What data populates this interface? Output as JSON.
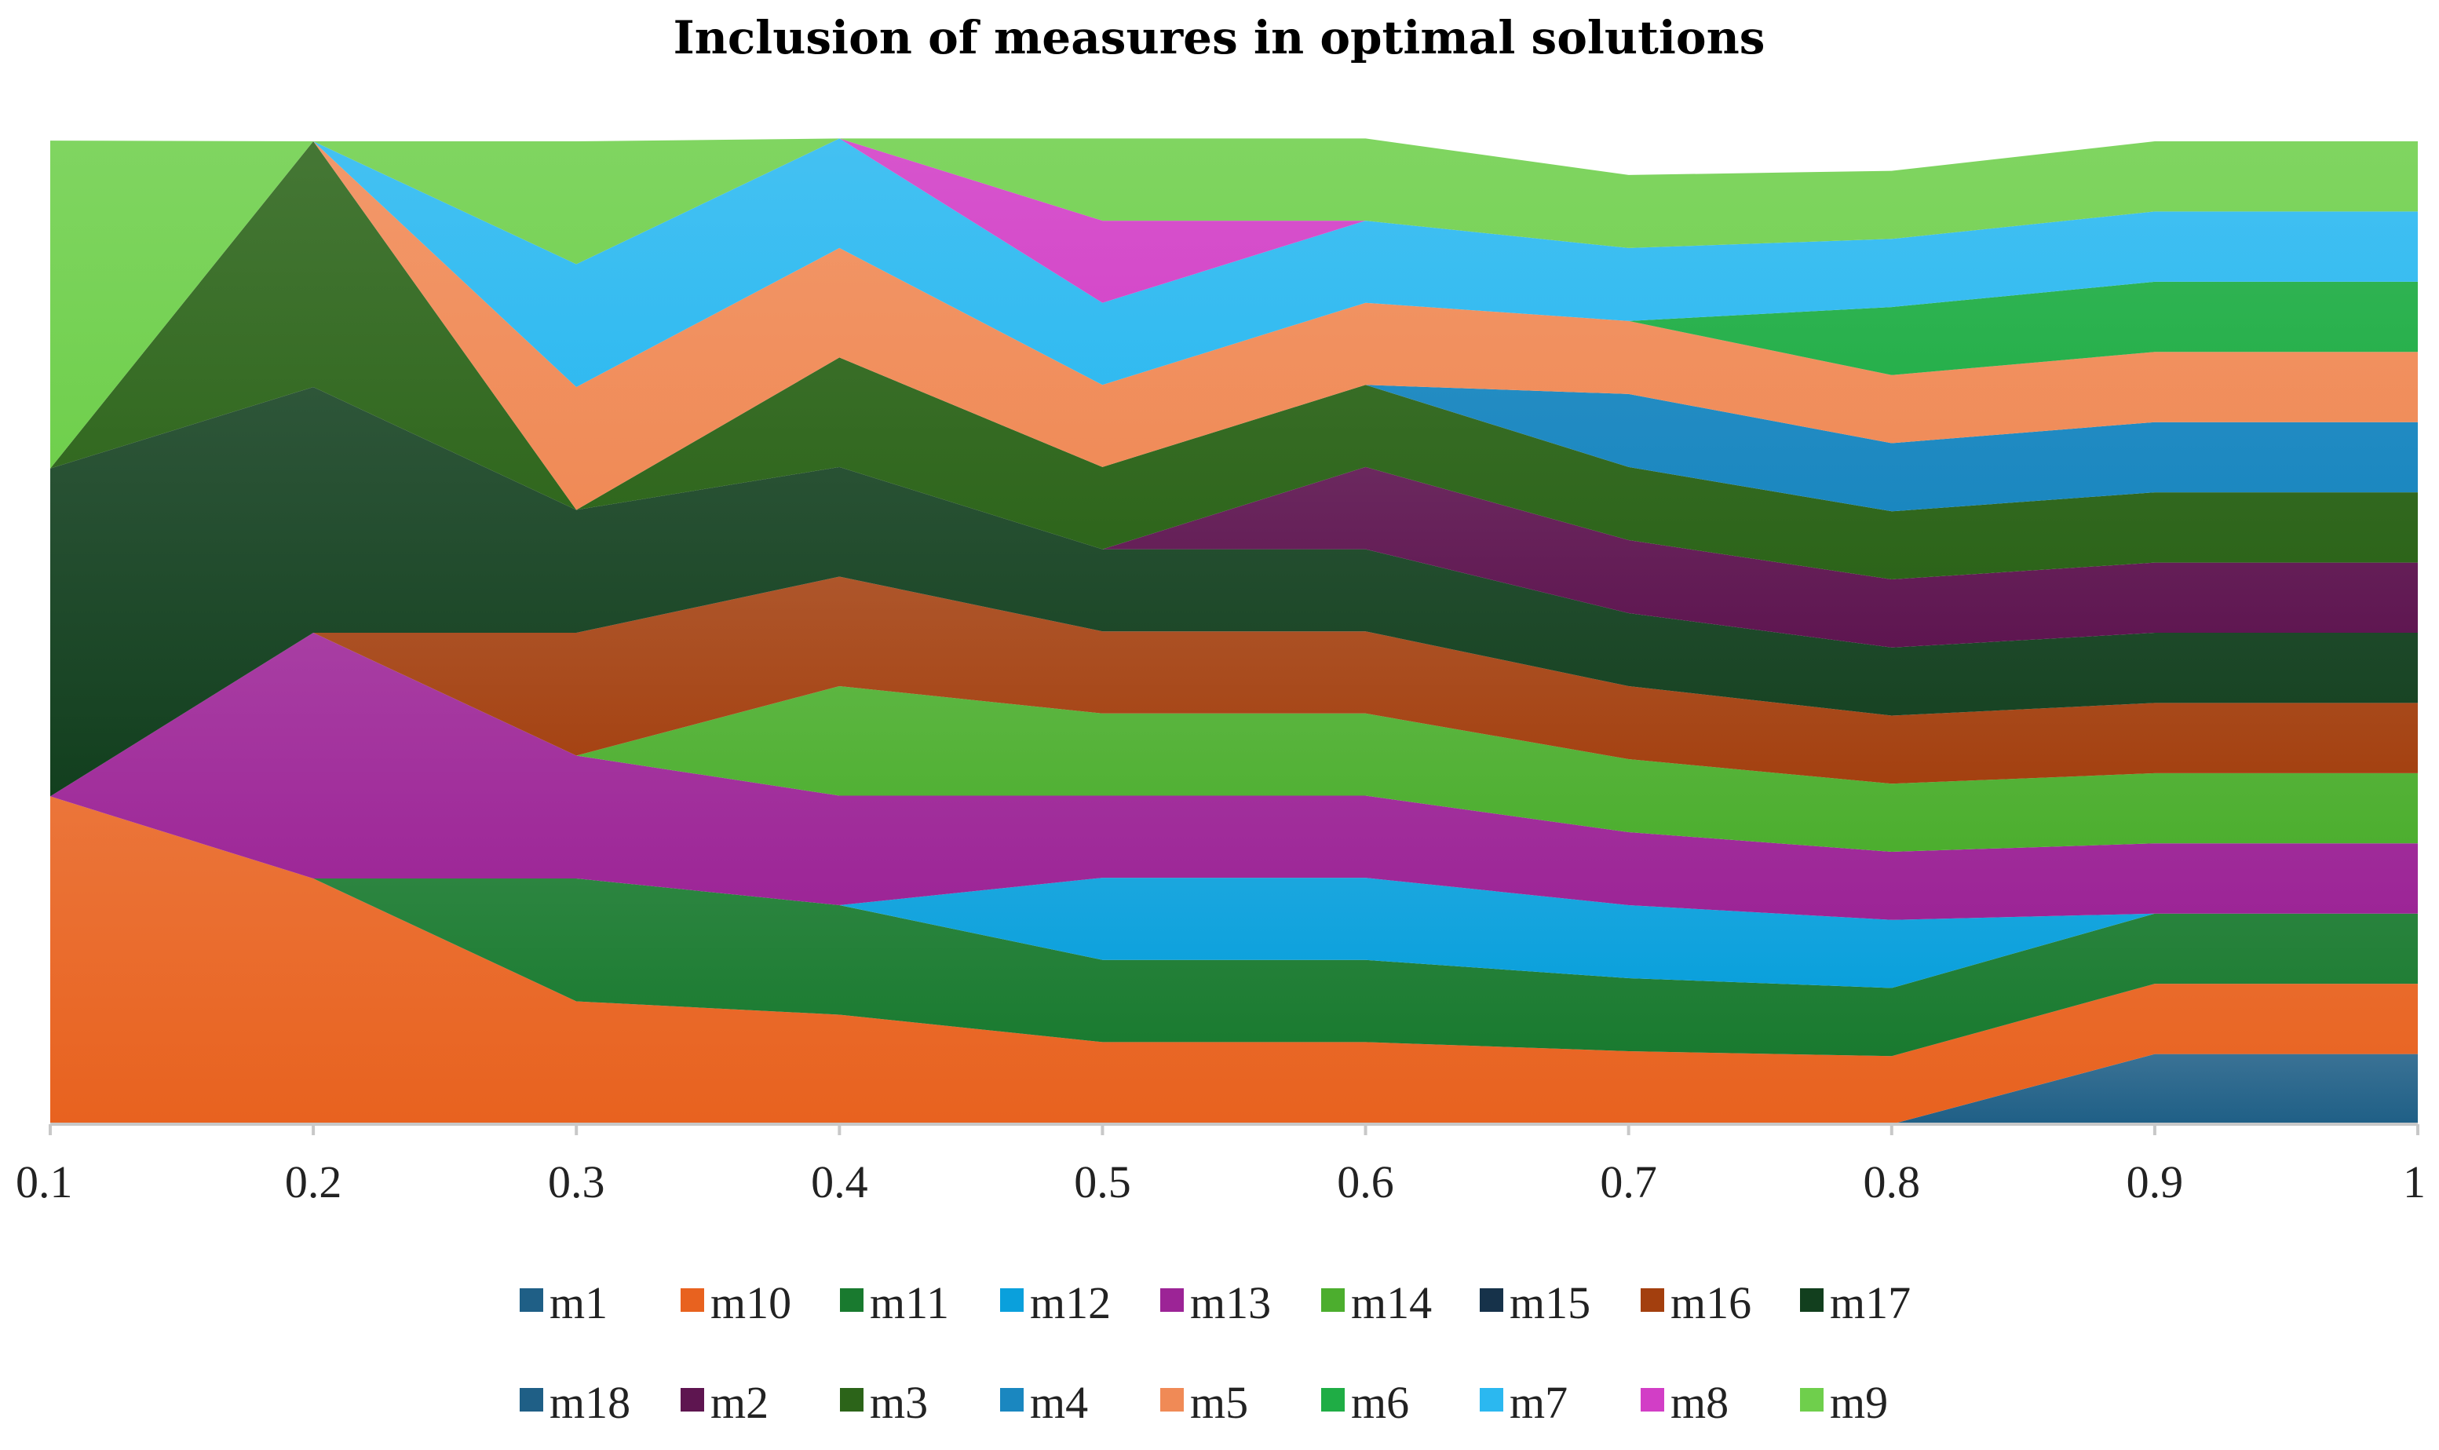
{
  "chart_data": {
    "type": "area",
    "stacked": true,
    "title": "Inclusion of measures in optimal solutions",
    "xlabel": "",
    "ylabel": "",
    "x": [
      "0.1",
      "0.2",
      "0.3",
      "0.4",
      "0.5",
      "0.6",
      "0.7",
      "0.8",
      "0.9",
      "1"
    ],
    "ylim": [
      0,
      14
    ],
    "grid": false,
    "legend_position": "bottom",
    "series": [
      {
        "name": "m1",
        "color": "#1f5f86",
        "values": [
          0,
          0,
          0,
          0,
          0,
          0,
          0,
          0,
          1,
          1
        ]
      },
      {
        "name": "m10",
        "color": "#e8621f",
        "values": [
          4.67,
          3.5,
          1.75,
          1.56,
          1.17,
          1.17,
          1.04,
          0.97,
          1,
          1
        ]
      },
      {
        "name": "m11",
        "color": "#197a2f",
        "values": [
          0,
          0,
          1.75,
          1.56,
          1.17,
          1.17,
          1.04,
          0.97,
          1,
          1
        ]
      },
      {
        "name": "m12",
        "color": "#0aa0dc",
        "values": [
          0,
          0,
          0,
          0,
          1.17,
          1.17,
          1.04,
          0.97,
          0,
          0
        ]
      },
      {
        "name": "m13",
        "color": "#9c2496",
        "values": [
          0,
          3.5,
          1.75,
          1.56,
          1.17,
          1.17,
          1.04,
          0.97,
          1,
          1
        ]
      },
      {
        "name": "m14",
        "color": "#4cae2e",
        "values": [
          0,
          0,
          0,
          1.56,
          1.17,
          1.17,
          1.04,
          0.97,
          1,
          1
        ]
      },
      {
        "name": "m15",
        "color": "#16324a",
        "values": [
          0,
          0,
          0,
          0,
          0,
          0,
          0,
          0,
          0,
          0
        ]
      },
      {
        "name": "m16",
        "color": "#a33f0e",
        "values": [
          0,
          0,
          1.75,
          1.56,
          1.17,
          1.17,
          1.04,
          0.97,
          1,
          1
        ]
      },
      {
        "name": "m17",
        "color": "#123f1e",
        "values": [
          4.67,
          3.5,
          1.75,
          1.56,
          1.17,
          1.17,
          1.04,
          0.97,
          1,
          1
        ]
      },
      {
        "name": "m18",
        "color": "#1f5f86",
        "values": [
          0,
          0,
          0,
          0,
          0,
          0,
          0,
          0,
          0,
          0
        ]
      },
      {
        "name": "m2",
        "color": "#5e1550",
        "values": [
          0,
          0,
          0,
          0,
          0,
          1.17,
          1.04,
          0.97,
          1,
          1
        ]
      },
      {
        "name": "m3",
        "color": "#2c6419",
        "values": [
          0,
          3.5,
          0,
          1.56,
          1.17,
          1.17,
          1.04,
          0.97,
          1,
          1
        ]
      },
      {
        "name": "m4",
        "color": "#1a87c0",
        "values": [
          0,
          0,
          0,
          0,
          0,
          0,
          1.04,
          0.97,
          1,
          1
        ]
      },
      {
        "name": "m5",
        "color": "#f08a56",
        "values": [
          0,
          0,
          1.75,
          1.56,
          1.17,
          1.17,
          1.04,
          0.97,
          1,
          1
        ]
      },
      {
        "name": "m6",
        "color": "#1fad45",
        "values": [
          0,
          0,
          0,
          0,
          0,
          0,
          0,
          0.97,
          1,
          1
        ]
      },
      {
        "name": "m7",
        "color": "#2bb8f0",
        "values": [
          0,
          0,
          1.75,
          1.56,
          1.17,
          1.17,
          1.04,
          0.97,
          1,
          1
        ]
      },
      {
        "name": "m8",
        "color": "#d23ec6",
        "values": [
          0,
          0,
          0,
          0,
          1.17,
          0,
          0,
          0,
          0,
          0
        ]
      },
      {
        "name": "m9",
        "color": "#6fcf4c",
        "values": [
          4.67,
          0,
          1.75,
          0,
          1.17,
          1.17,
          1.04,
          0.97,
          1,
          1
        ]
      }
    ],
    "legend_rows": [
      [
        "m1",
        "m10",
        "m11",
        "m12",
        "m13",
        "m14",
        "m15",
        "m16",
        "m17"
      ],
      [
        "m18",
        "m2",
        "m3",
        "m4",
        "m5",
        "m6",
        "m7",
        "m8",
        "m9"
      ]
    ]
  }
}
